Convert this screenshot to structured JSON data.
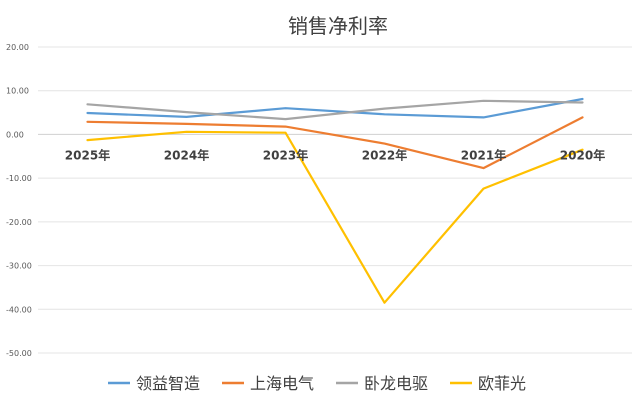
{
  "chart_data": {
    "type": "line",
    "title": "销售净利率",
    "categories": [
      "2025年",
      "2024年",
      "2023年",
      "2022年",
      "2021年",
      "2020年"
    ],
    "ylim": [
      -50,
      20
    ],
    "yticks": [
      "20.00",
      "10.00",
      "0.00",
      "-10.00",
      "-20.00",
      "-30.00",
      "-40.00",
      "-50.00"
    ],
    "ytick_values": [
      20,
      10,
      0,
      -10,
      -20,
      -30,
      -40,
      -50
    ],
    "grid": true,
    "legend_position": "bottom",
    "series": [
      {
        "name": "领益智造",
        "color": "#5b9bd5",
        "values": [
          4.9,
          4.0,
          6.0,
          4.6,
          3.9,
          8.1
        ]
      },
      {
        "name": "上海电气",
        "color": "#ed7d31",
        "values": [
          2.9,
          2.4,
          1.8,
          -2.1,
          -7.7,
          3.9
        ]
      },
      {
        "name": "卧龙电驱",
        "color": "#a5a5a5",
        "values": [
          6.9,
          5.1,
          3.5,
          5.9,
          7.7,
          7.3
        ]
      },
      {
        "name": "欧菲光",
        "color": "#ffc000",
        "values": [
          -1.3,
          0.6,
          0.4,
          -38.5,
          -12.4,
          -3.5
        ]
      }
    ]
  }
}
